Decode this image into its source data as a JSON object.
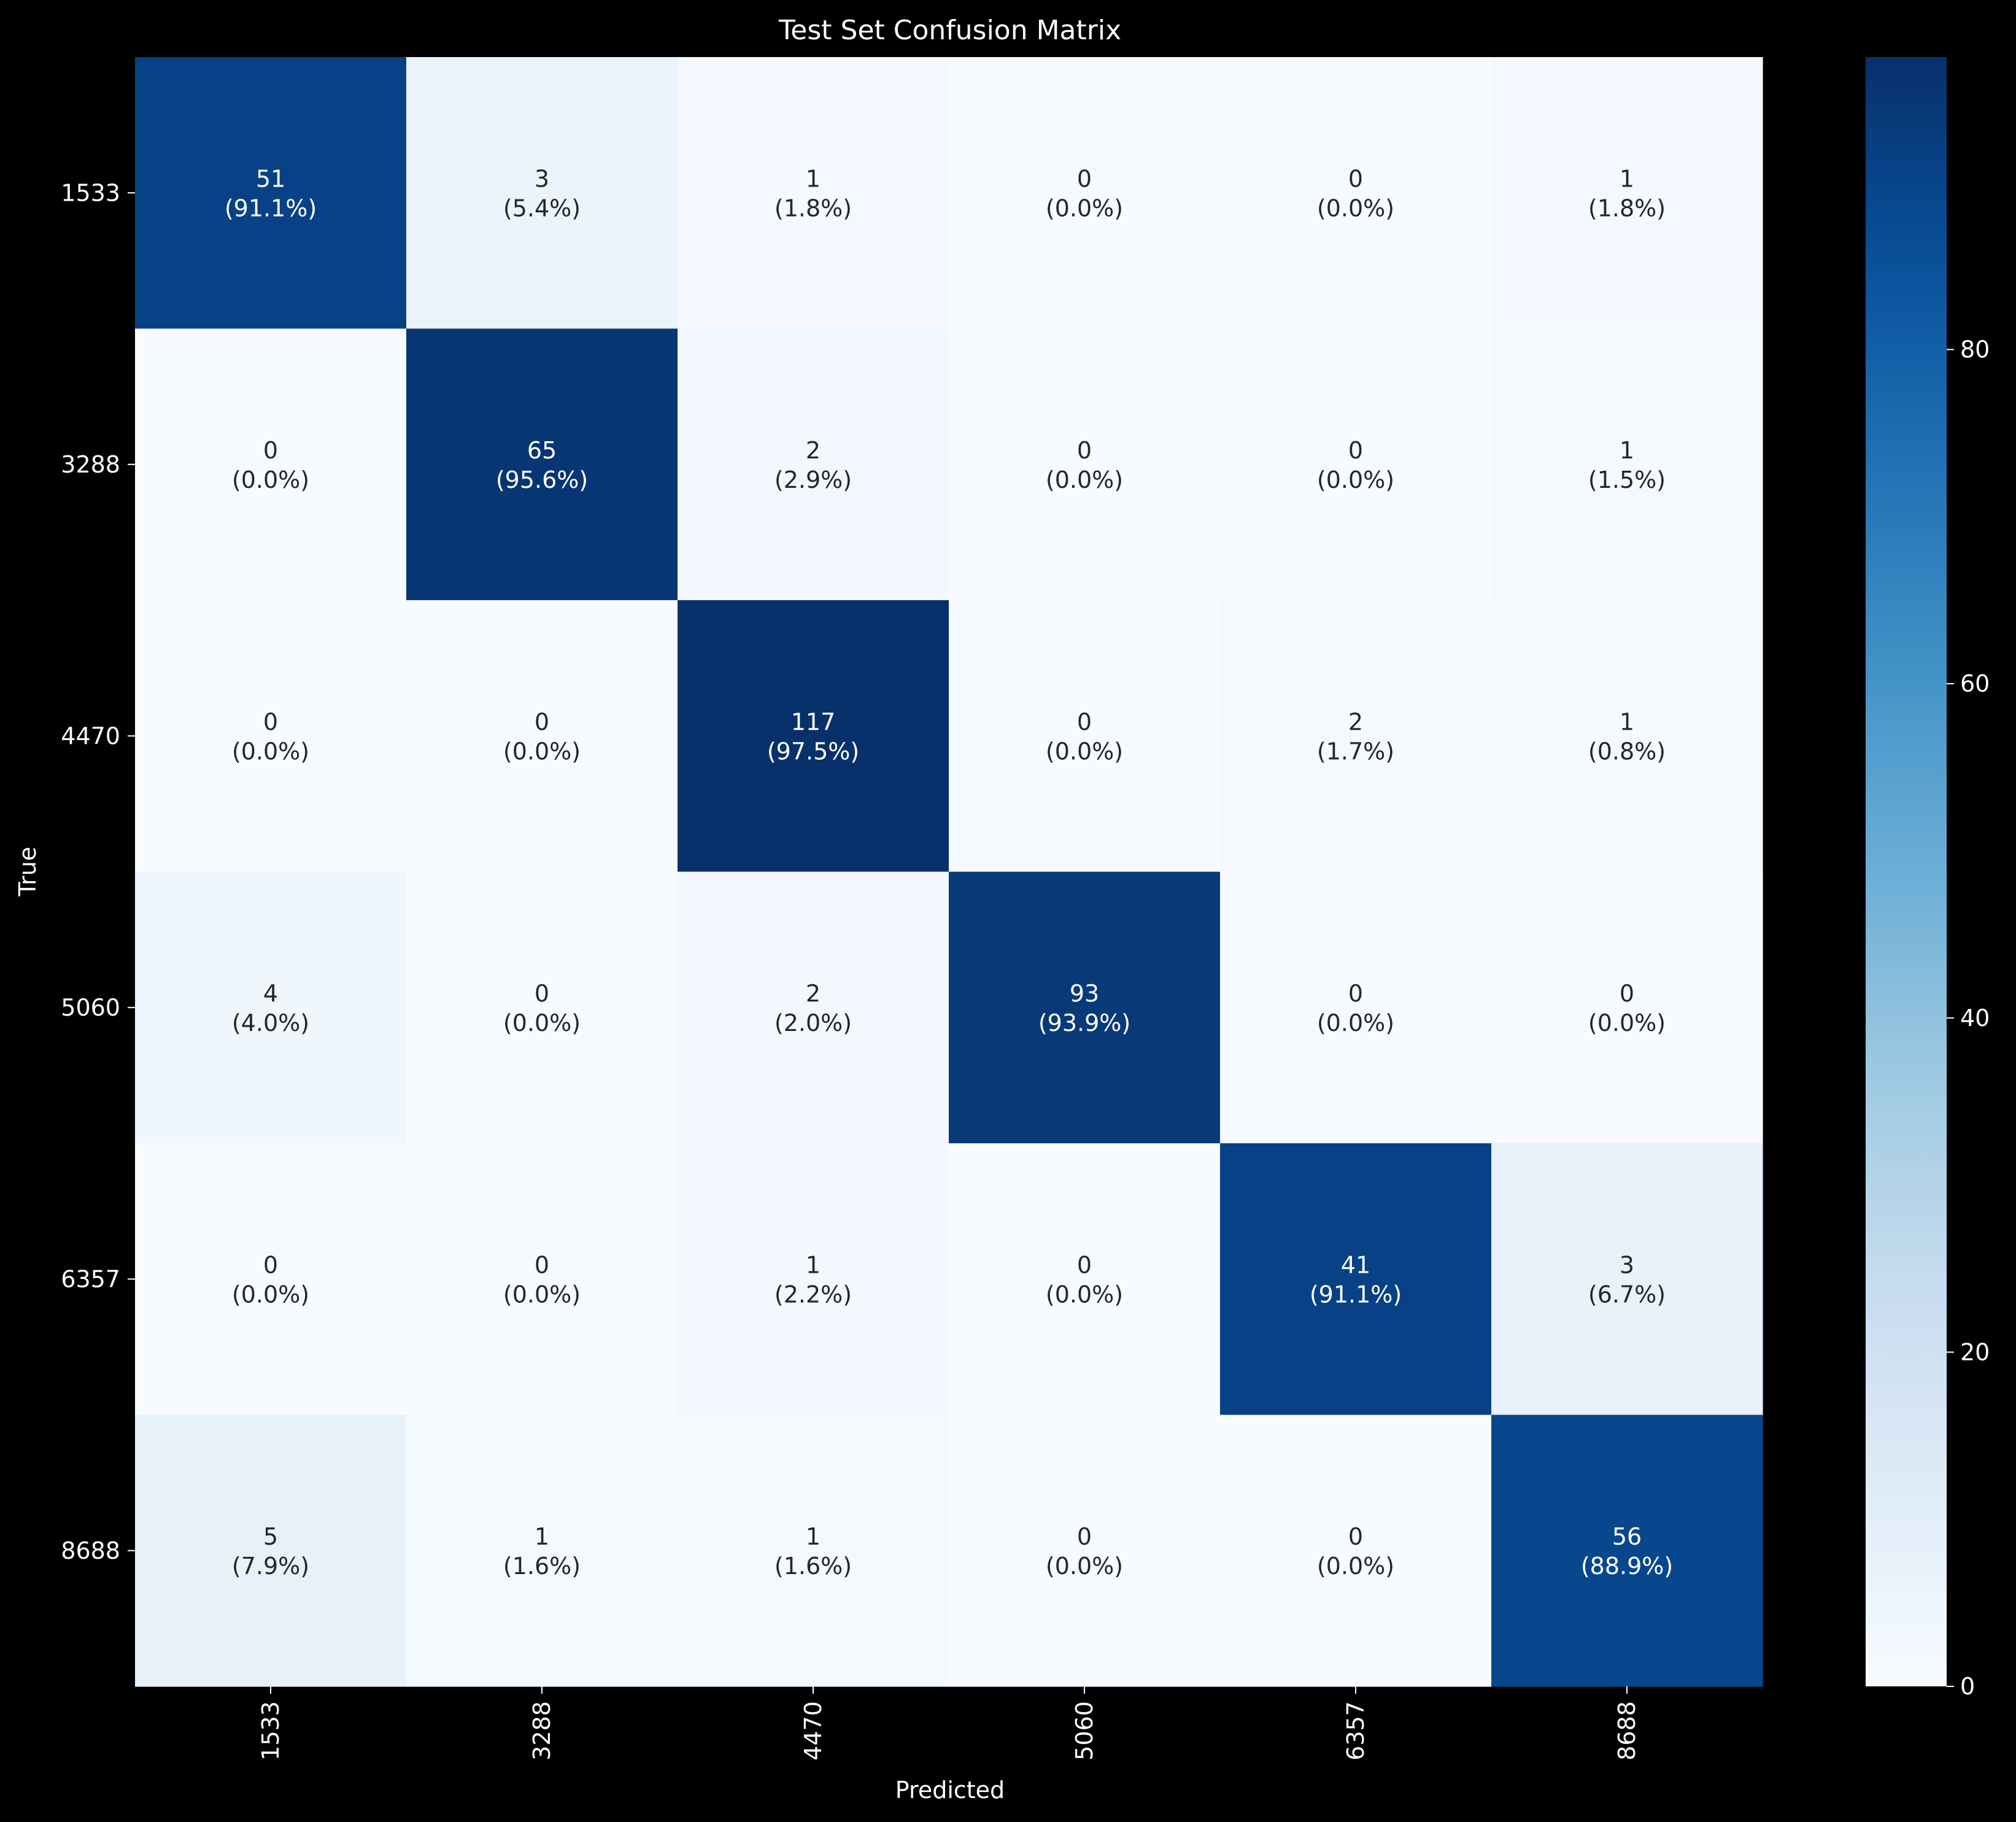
{
  "chart_data": {
    "type": "heatmap",
    "title": "Test Set Confusion Matrix",
    "xlabel": "Predicted",
    "ylabel": "True",
    "x_categories": [
      "1533",
      "3288",
      "4470",
      "5060",
      "6357",
      "8688"
    ],
    "y_categories": [
      "1533",
      "3288",
      "4470",
      "5060",
      "6357",
      "8688"
    ],
    "counts": [
      [
        51,
        3,
        1,
        0,
        0,
        1
      ],
      [
        0,
        65,
        2,
        0,
        0,
        1
      ],
      [
        0,
        0,
        117,
        0,
        2,
        1
      ],
      [
        4,
        0,
        2,
        93,
        0,
        0
      ],
      [
        0,
        0,
        1,
        0,
        41,
        3
      ],
      [
        5,
        1,
        1,
        0,
        0,
        56
      ]
    ],
    "row_percentages": [
      [
        "(91.1%)",
        "(5.4%)",
        "(1.8%)",
        "(0.0%)",
        "(0.0%)",
        "(1.8%)"
      ],
      [
        "(0.0%)",
        "(95.6%)",
        "(2.9%)",
        "(0.0%)",
        "(0.0%)",
        "(1.5%)"
      ],
      [
        "(0.0%)",
        "(0.0%)",
        "(97.5%)",
        "(0.0%)",
        "(1.7%)",
        "(0.8%)"
      ],
      [
        "(4.0%)",
        "(0.0%)",
        "(2.0%)",
        "(93.9%)",
        "(0.0%)",
        "(0.0%)"
      ],
      [
        "(0.0%)",
        "(0.0%)",
        "(2.2%)",
        "(0.0%)",
        "(91.1%)",
        "(6.7%)"
      ],
      [
        "(7.9%)",
        "(1.6%)",
        "(1.6%)",
        "(0.0%)",
        "(0.0%)",
        "(88.9%)"
      ]
    ],
    "color_values": [
      [
        91.1,
        5.4,
        1.8,
        0.0,
        0.0,
        1.8
      ],
      [
        0.0,
        95.6,
        2.9,
        0.0,
        0.0,
        1.5
      ],
      [
        0.0,
        0.0,
        97.5,
        0.0,
        1.7,
        0.8
      ],
      [
        4.0,
        0.0,
        2.0,
        93.9,
        0.0,
        0.0
      ],
      [
        0.0,
        0.0,
        2.2,
        0.0,
        91.1,
        6.7
      ],
      [
        7.9,
        1.6,
        1.6,
        0.0,
        0.0,
        88.9
      ]
    ],
    "colormap": "Blues",
    "colorbar": {
      "range": [
        0,
        97.5
      ],
      "ticks": [
        0,
        20,
        40,
        60,
        80
      ]
    },
    "annotation_color_light": "#ffffff",
    "annotation_color_dark": "#262626"
  }
}
